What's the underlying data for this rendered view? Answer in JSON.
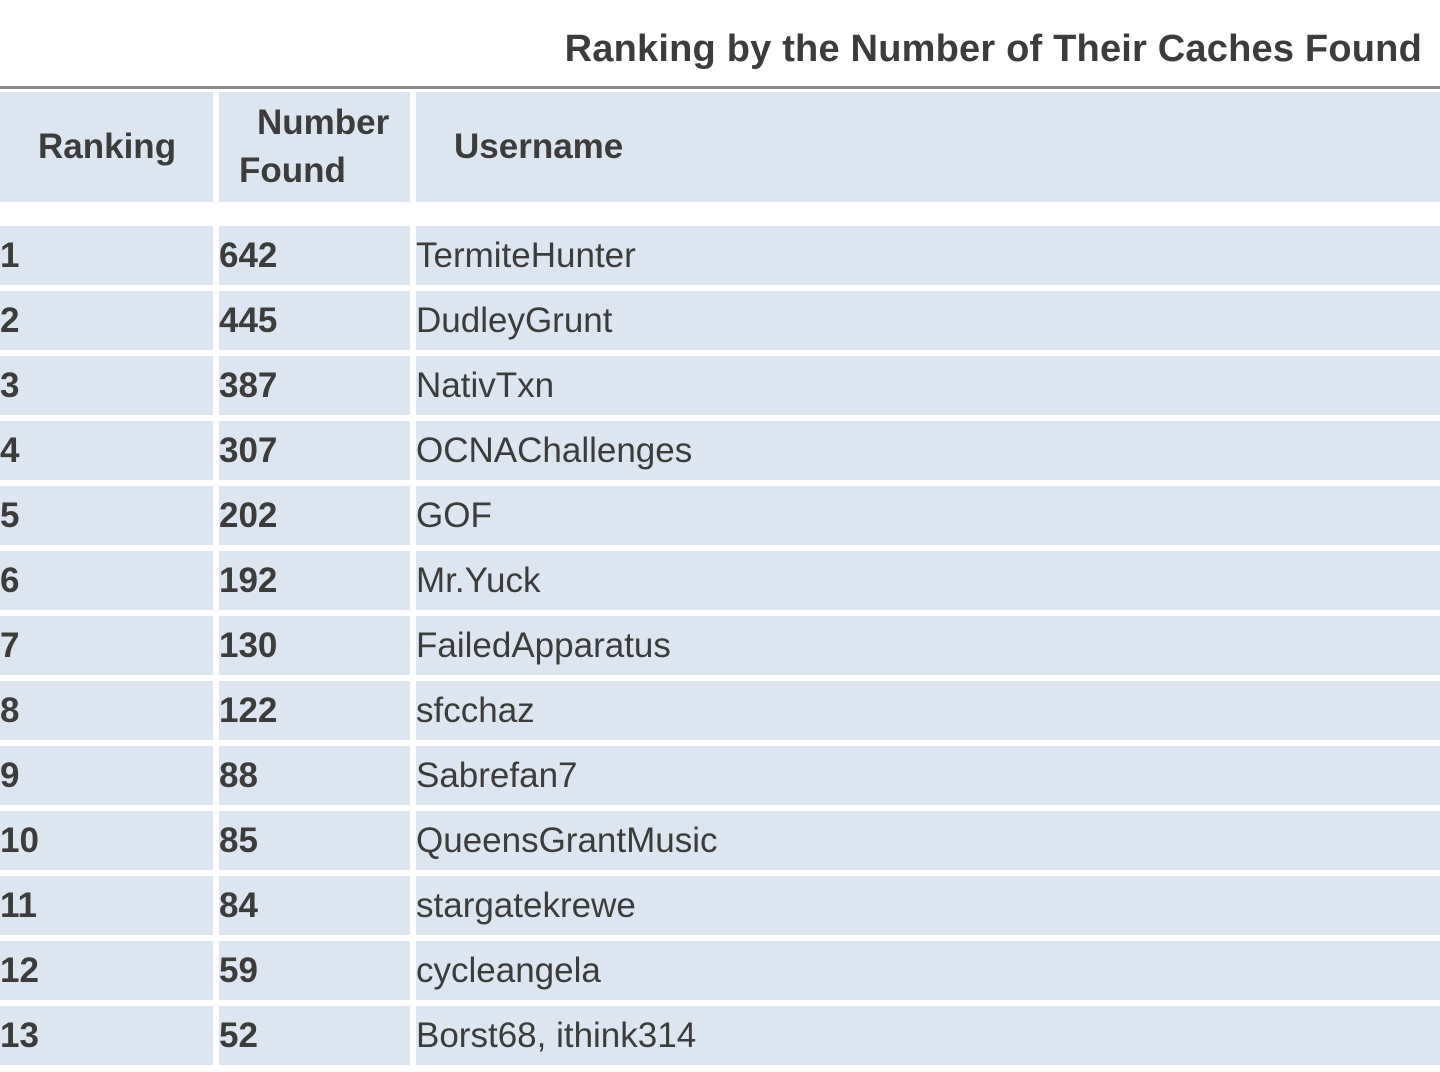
{
  "title": "Ranking by the Number of Their Caches Found",
  "headers": {
    "ranking": "Ranking",
    "number_found_line1": "Number",
    "number_found_line2": "Found",
    "username": "Username"
  },
  "rows": [
    {
      "rank": "1",
      "found": "642",
      "username": "TermiteHunter"
    },
    {
      "rank": "2",
      "found": "445",
      "username": "DudleyGrunt"
    },
    {
      "rank": "3",
      "found": "387",
      "username": "NativTxn"
    },
    {
      "rank": "4",
      "found": "307",
      "username": "OCNAChallenges"
    },
    {
      "rank": "5",
      "found": "202",
      "username": "GOF"
    },
    {
      "rank": "6",
      "found": "192",
      "username": "Mr.Yuck"
    },
    {
      "rank": "7",
      "found": "130",
      "username": "FailedApparatus"
    },
    {
      "rank": "8",
      "found": "122",
      "username": "sfcchaz"
    },
    {
      "rank": "9",
      "found": "88",
      "username": "Sabrefan7"
    },
    {
      "rank": "10",
      "found": "85",
      "username": "QueensGrantMusic"
    },
    {
      "rank": "11",
      "found": "84",
      "username": "stargatekrewe"
    },
    {
      "rank": "12",
      "found": "59",
      "username": "cycleangela"
    },
    {
      "rank": "13",
      "found": "52",
      "username": "Borst68, ithink314"
    }
  ],
  "colors": {
    "cell_background": "#dde6f0",
    "text": "#3c3c3c",
    "rule": "#8a8a8a"
  }
}
